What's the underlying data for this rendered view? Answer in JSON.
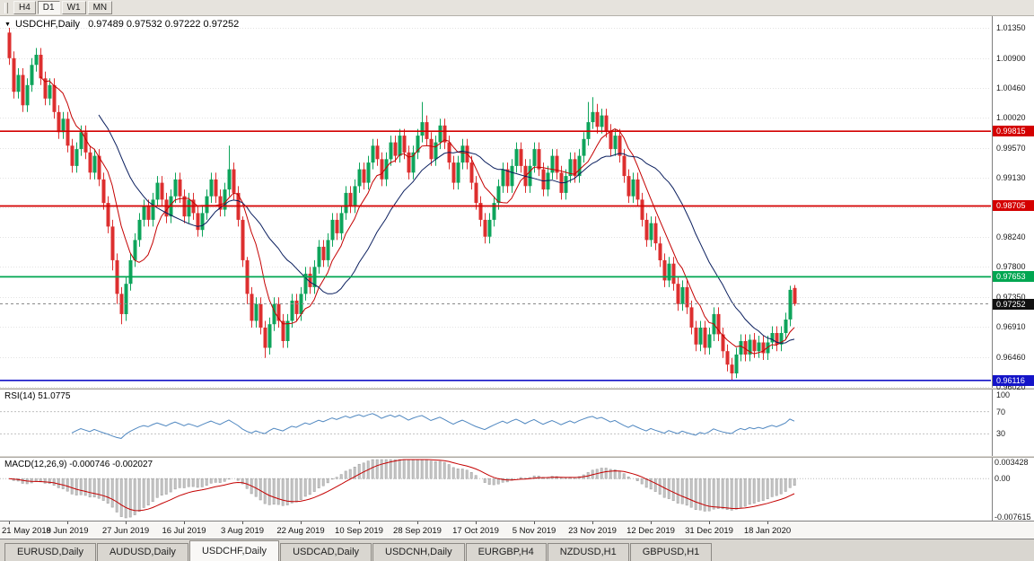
{
  "toolbar": {
    "timeframes": [
      {
        "label": "H4",
        "active": false
      },
      {
        "label": "D1",
        "active": true
      },
      {
        "label": "W1",
        "active": false
      },
      {
        "label": "MN",
        "active": false
      }
    ]
  },
  "main_chart": {
    "title": "USDCHF,Daily",
    "ohlc_text": "0.97489  0.97532  0.97222  0.97252"
  },
  "rsi": {
    "label": "RSI(14) 51.0775",
    "value": "51.0775",
    "axis_labels": [
      100,
      70,
      30
    ],
    "level_lines": [
      70,
      30
    ]
  },
  "macd": {
    "label": "MACD(12,26,9) -0.000746 -0.002027",
    "axis_labels": [
      {
        "v": 0.003428,
        "t": "0.003428"
      },
      {
        "v": 0,
        "t": "0.00"
      },
      {
        "v": -0.007615,
        "t": "-0.007615"
      }
    ],
    "range_max": 0.003428,
    "range_min": -0.007615
  },
  "tabs": [
    {
      "label": "EURUSD,Daily",
      "active": false
    },
    {
      "label": "AUDUSD,Daily",
      "active": false
    },
    {
      "label": "USDCHF,Daily",
      "active": true
    },
    {
      "label": "USDCAD,Daily",
      "active": false
    },
    {
      "label": "USDCNH,Daily",
      "active": false
    },
    {
      "label": "EURGBP,H4",
      "active": false
    },
    {
      "label": "NZDUSD,H1",
      "active": false
    },
    {
      "label": "GBPUSD,H1",
      "active": false
    }
  ],
  "chart_data": {
    "type": "candlestick",
    "symbol": "USDCHF",
    "timeframe": "Daily",
    "y_ticks": [
      "1.01350",
      "1.00900",
      "1.00460",
      "1.00020",
      "0.99570",
      "0.99130",
      "0.98690",
      "0.98240",
      "0.97800",
      "0.97350",
      "0.96910",
      "0.96460",
      "0.96020"
    ],
    "hlines": [
      {
        "price": 0.99815,
        "label": "0.99815",
        "color": "#d40000"
      },
      {
        "price": 0.98705,
        "label": "0.98705",
        "color": "#d40000"
      },
      {
        "price": 0.97653,
        "label": "0.97653",
        "color": "#00a651"
      },
      {
        "price": 0.96116,
        "label": "0.96116",
        "color": "#1414c8"
      }
    ],
    "current_price": {
      "value": 0.97252,
      "label": "0.97252",
      "color": "#111111"
    },
    "colors": {
      "bull": "#0ea45b",
      "bear": "#dd2f2f",
      "ma_fast": "#c40000",
      "ma_slow": "#0a1e5e",
      "grid": "#e2e2e2",
      "rsi_line": "#4f87c0",
      "macd_hist": "#c4c4c4",
      "macd_hist_border": "#9a9a9a",
      "macd_signal": "#c40000"
    },
    "x_labels": [
      {
        "i": 0,
        "t": "21 May 2019"
      },
      {
        "i": 13,
        "t": "8 Jun 2019"
      },
      {
        "i": 26,
        "t": "27 Jun 2019"
      },
      {
        "i": 39,
        "t": "16 Jul 2019"
      },
      {
        "i": 52,
        "t": "3 Aug 2019"
      },
      {
        "i": 65,
        "t": "22 Aug 2019"
      },
      {
        "i": 78,
        "t": "10 Sep 2019"
      },
      {
        "i": 91,
        "t": "28 Sep 2019"
      },
      {
        "i": 104,
        "t": "17 Oct 2019"
      },
      {
        "i": 117,
        "t": "5 Nov 2019"
      },
      {
        "i": 130,
        "t": "23 Nov 2019"
      },
      {
        "i": 143,
        "t": "12 Dec 2019"
      },
      {
        "i": 156,
        "t": "31 Dec 2019"
      },
      {
        "i": 169,
        "t": "18 Jan 2020"
      }
    ],
    "candles": [
      [
        1.0128,
        1.0135,
        1.008,
        1.009
      ],
      [
        1.009,
        1.01,
        1.003,
        1.004
      ],
      [
        1.004,
        1.0075,
        1.003,
        1.0065
      ],
      [
        1.0065,
        1.0075,
        1.001,
        1.002
      ],
      [
        1.002,
        1.006,
        1.001,
        1.005
      ],
      [
        1.005,
        1.009,
        1.004,
        1.008
      ],
      [
        1.008,
        1.0105,
        1.007,
        1.0095
      ],
      [
        1.0095,
        1.0105,
        1.005,
        1.006
      ],
      [
        1.006,
        1.007,
        1.002,
        1.003
      ],
      [
        1.003,
        1.006,
        1.002,
        1.005
      ],
      [
        1.005,
        1.006,
        1.0,
        1.001
      ],
      [
        1.001,
        1.002,
        0.997,
        0.998
      ],
      [
        0.998,
        1.001,
        0.997,
        1.0
      ],
      [
        1.0,
        1.001,
        0.995,
        0.996
      ],
      [
        0.996,
        0.997,
        0.992,
        0.993
      ],
      [
        0.993,
        0.9965,
        0.992,
        0.9955
      ],
      [
        0.9955,
        0.999,
        0.9945,
        0.998
      ],
      [
        0.998,
        0.999,
        0.994,
        0.995
      ],
      [
        0.995,
        0.996,
        0.991,
        0.992
      ],
      [
        0.992,
        0.9955,
        0.991,
        0.9945
      ],
      [
        0.9945,
        0.9955,
        0.99,
        0.991
      ],
      [
        0.991,
        0.992,
        0.9865,
        0.9875
      ],
      [
        0.9875,
        0.9885,
        0.983,
        0.984
      ],
      [
        0.984,
        0.985,
        0.9775,
        0.979
      ],
      [
        0.979,
        0.98,
        0.9725,
        0.974
      ],
      [
        0.974,
        0.975,
        0.9695,
        0.971
      ],
      [
        0.971,
        0.9765,
        0.97,
        0.9755
      ],
      [
        0.9755,
        0.98,
        0.9745,
        0.979
      ],
      [
        0.979,
        0.983,
        0.978,
        0.982
      ],
      [
        0.982,
        0.986,
        0.981,
        0.985
      ],
      [
        0.985,
        0.988,
        0.984,
        0.987
      ],
      [
        0.987,
        0.988,
        0.984,
        0.985
      ],
      [
        0.985,
        0.989,
        0.984,
        0.988
      ],
      [
        0.988,
        0.9915,
        0.987,
        0.9905
      ],
      [
        0.9905,
        0.9915,
        0.987,
        0.988
      ],
      [
        0.988,
        0.989,
        0.9845,
        0.9855
      ],
      [
        0.9855,
        0.9895,
        0.9845,
        0.9885
      ],
      [
        0.9885,
        0.992,
        0.9875,
        0.991
      ],
      [
        0.991,
        0.992,
        0.9875,
        0.9885
      ],
      [
        0.9885,
        0.9895,
        0.9845,
        0.9855
      ],
      [
        0.9855,
        0.989,
        0.9845,
        0.988
      ],
      [
        0.988,
        0.989,
        0.985,
        0.986
      ],
      [
        0.986,
        0.987,
        0.9825,
        0.9835
      ],
      [
        0.9835,
        0.987,
        0.9825,
        0.986
      ],
      [
        0.986,
        0.9895,
        0.985,
        0.9885
      ],
      [
        0.9885,
        0.992,
        0.9875,
        0.991
      ],
      [
        0.991,
        0.992,
        0.9875,
        0.9885
      ],
      [
        0.9885,
        0.9895,
        0.9855,
        0.9865
      ],
      [
        0.9865,
        0.9905,
        0.9855,
        0.9895
      ],
      [
        0.9895,
        0.996,
        0.9885,
        0.9925
      ],
      [
        0.9925,
        0.9935,
        0.988,
        0.989
      ],
      [
        0.989,
        0.99,
        0.984,
        0.985
      ],
      [
        0.985,
        0.9855,
        0.978,
        0.979
      ],
      [
        0.979,
        0.9795,
        0.9725,
        0.974
      ],
      [
        0.974,
        0.975,
        0.969,
        0.97
      ],
      [
        0.97,
        0.9735,
        0.969,
        0.9725
      ],
      [
        0.9725,
        0.9735,
        0.968,
        0.969
      ],
      [
        0.969,
        0.97,
        0.9645,
        0.966
      ],
      [
        0.966,
        0.9705,
        0.965,
        0.9695
      ],
      [
        0.9695,
        0.9735,
        0.9685,
        0.9725
      ],
      [
        0.9725,
        0.9735,
        0.969,
        0.97
      ],
      [
        0.97,
        0.971,
        0.966,
        0.967
      ],
      [
        0.967,
        0.971,
        0.966,
        0.97
      ],
      [
        0.97,
        0.974,
        0.969,
        0.973
      ],
      [
        0.973,
        0.974,
        0.97,
        0.971
      ],
      [
        0.971,
        0.975,
        0.97,
        0.974
      ],
      [
        0.974,
        0.978,
        0.973,
        0.977
      ],
      [
        0.977,
        0.978,
        0.974,
        0.975
      ],
      [
        0.975,
        0.979,
        0.974,
        0.978
      ],
      [
        0.978,
        0.982,
        0.977,
        0.981
      ],
      [
        0.981,
        0.982,
        0.978,
        0.979
      ],
      [
        0.979,
        0.983,
        0.978,
        0.982
      ],
      [
        0.982,
        0.986,
        0.981,
        0.985
      ],
      [
        0.985,
        0.986,
        0.982,
        0.983
      ],
      [
        0.983,
        0.987,
        0.982,
        0.986
      ],
      [
        0.986,
        0.99,
        0.985,
        0.989
      ],
      [
        0.989,
        0.99,
        0.986,
        0.987
      ],
      [
        0.987,
        0.991,
        0.986,
        0.99
      ],
      [
        0.99,
        0.9935,
        0.989,
        0.9925
      ],
      [
        0.9925,
        0.9935,
        0.9895,
        0.9905
      ],
      [
        0.9905,
        0.9945,
        0.9895,
        0.9935
      ],
      [
        0.9935,
        0.997,
        0.9925,
        0.996
      ],
      [
        0.996,
        0.997,
        0.993,
        0.994
      ],
      [
        0.994,
        0.995,
        0.99,
        0.991
      ],
      [
        0.991,
        0.995,
        0.99,
        0.994
      ],
      [
        0.994,
        0.9975,
        0.993,
        0.9965
      ],
      [
        0.9965,
        0.9975,
        0.9935,
        0.9945
      ],
      [
        0.9945,
        0.9985,
        0.9935,
        0.9975
      ],
      [
        0.9975,
        0.9985,
        0.994,
        0.995
      ],
      [
        0.995,
        0.996,
        0.991,
        0.992
      ],
      [
        0.992,
        0.996,
        0.991,
        0.995
      ],
      [
        0.995,
        0.9985,
        0.994,
        0.9975
      ],
      [
        0.9975,
        1.0025,
        0.9965,
        0.9995
      ],
      [
        0.9995,
        1.0005,
        0.996,
        0.997
      ],
      [
        0.997,
        0.998,
        0.993,
        0.994
      ],
      [
        0.994,
        0.9975,
        0.993,
        0.9965
      ],
      [
        0.9965,
        1.0,
        0.9955,
        0.999
      ],
      [
        0.999,
        1.0,
        0.9955,
        0.9965
      ],
      [
        0.9965,
        0.9975,
        0.9925,
        0.9935
      ],
      [
        0.9935,
        0.9945,
        0.9895,
        0.9905
      ],
      [
        0.9905,
        0.9945,
        0.9895,
        0.9935
      ],
      [
        0.9935,
        0.997,
        0.9925,
        0.996
      ],
      [
        0.996,
        0.997,
        0.9925,
        0.9935
      ],
      [
        0.9935,
        0.9945,
        0.9895,
        0.9905
      ],
      [
        0.9905,
        0.9915,
        0.9865,
        0.9875
      ],
      [
        0.9875,
        0.9885,
        0.984,
        0.985
      ],
      [
        0.985,
        0.986,
        0.9815,
        0.9825
      ],
      [
        0.9825,
        0.986,
        0.9815,
        0.985
      ],
      [
        0.985,
        0.9885,
        0.984,
        0.9875
      ],
      [
        0.9875,
        0.991,
        0.9865,
        0.99
      ],
      [
        0.99,
        0.9935,
        0.989,
        0.9925
      ],
      [
        0.9925,
        0.9935,
        0.989,
        0.99
      ],
      [
        0.99,
        0.994,
        0.989,
        0.993
      ],
      [
        0.993,
        0.9965,
        0.992,
        0.9955
      ],
      [
        0.9955,
        0.9965,
        0.992,
        0.993
      ],
      [
        0.993,
        0.994,
        0.989,
        0.99
      ],
      [
        0.99,
        0.994,
        0.989,
        0.993
      ],
      [
        0.993,
        0.9965,
        0.992,
        0.9955
      ],
      [
        0.9955,
        0.9965,
        0.9915,
        0.9925
      ],
      [
        0.9925,
        0.9935,
        0.9885,
        0.9895
      ],
      [
        0.9895,
        0.993,
        0.9885,
        0.992
      ],
      [
        0.992,
        0.9955,
        0.991,
        0.9945
      ],
      [
        0.9945,
        0.9955,
        0.991,
        0.992
      ],
      [
        0.992,
        0.993,
        0.988,
        0.989
      ],
      [
        0.989,
        0.9925,
        0.988,
        0.9915
      ],
      [
        0.9915,
        0.995,
        0.9905,
        0.994
      ],
      [
        0.994,
        0.995,
        0.9905,
        0.9915
      ],
      [
        0.9915,
        0.9955,
        0.9905,
        0.9945
      ],
      [
        0.9945,
        0.998,
        0.9935,
        0.997
      ],
      [
        0.997,
        1.0025,
        0.996,
        0.9995
      ],
      [
        0.9995,
        1.0032,
        0.9985,
        1.001
      ],
      [
        1.001,
        1.0022,
        0.9978,
        0.9988
      ],
      [
        0.9988,
        1.0015,
        0.9978,
        1.0005
      ],
      [
        1.0005,
        1.0015,
        0.9972,
        0.9982
      ],
      [
        0.9982,
        0.9992,
        0.9945,
        0.9955
      ],
      [
        0.9955,
        0.9985,
        0.9945,
        0.9975
      ],
      [
        0.9975,
        0.9985,
        0.9935,
        0.9945
      ],
      [
        0.9945,
        0.9955,
        0.9905,
        0.9915
      ],
      [
        0.9915,
        0.9925,
        0.9875,
        0.9885
      ],
      [
        0.9885,
        0.992,
        0.9875,
        0.991
      ],
      [
        0.991,
        0.992,
        0.987,
        0.988
      ],
      [
        0.988,
        0.989,
        0.984,
        0.985
      ],
      [
        0.985,
        0.986,
        0.981,
        0.982
      ],
      [
        0.982,
        0.9855,
        0.981,
        0.9845
      ],
      [
        0.9845,
        0.9855,
        0.9805,
        0.9815
      ],
      [
        0.9815,
        0.9825,
        0.978,
        0.979
      ],
      [
        0.979,
        0.98,
        0.975,
        0.976
      ],
      [
        0.976,
        0.9795,
        0.975,
        0.9785
      ],
      [
        0.9785,
        0.9795,
        0.9745,
        0.9755
      ],
      [
        0.9755,
        0.9765,
        0.9715,
        0.9725
      ],
      [
        0.9725,
        0.976,
        0.9715,
        0.975
      ],
      [
        0.975,
        0.976,
        0.971,
        0.972
      ],
      [
        0.972,
        0.973,
        0.968,
        0.969
      ],
      [
        0.969,
        0.97,
        0.9655,
        0.9665
      ],
      [
        0.9665,
        0.97,
        0.9655,
        0.969
      ],
      [
        0.969,
        0.97,
        0.965,
        0.966
      ],
      [
        0.966,
        0.969,
        0.965,
        0.968
      ],
      [
        0.968,
        0.972,
        0.967,
        0.971
      ],
      [
        0.971,
        0.972,
        0.967,
        0.968
      ],
      [
        0.968,
        0.969,
        0.9645,
        0.9655
      ],
      [
        0.9655,
        0.9665,
        0.9625,
        0.9635
      ],
      [
        0.9635,
        0.9645,
        0.9612,
        0.9622
      ],
      [
        0.9622,
        0.966,
        0.9615,
        0.965
      ],
      [
        0.965,
        0.968,
        0.964,
        0.967
      ],
      [
        0.967,
        0.968,
        0.964,
        0.965
      ],
      [
        0.965,
        0.968,
        0.964,
        0.9672
      ],
      [
        0.9672,
        0.9682,
        0.9645,
        0.9655
      ],
      [
        0.9655,
        0.9678,
        0.9645,
        0.9668
      ],
      [
        0.9668,
        0.9678,
        0.9642,
        0.9652
      ],
      [
        0.9652,
        0.9678,
        0.9642,
        0.9668
      ],
      [
        0.9668,
        0.9692,
        0.9658,
        0.9682
      ],
      [
        0.9682,
        0.9692,
        0.9655,
        0.9665
      ],
      [
        0.9665,
        0.9692,
        0.9655,
        0.9682
      ],
      [
        0.9682,
        0.9712,
        0.9672,
        0.9702
      ],
      [
        0.9702,
        0.9752,
        0.9692,
        0.9746
      ],
      [
        0.97489,
        0.97532,
        0.97222,
        0.97252
      ]
    ]
  }
}
